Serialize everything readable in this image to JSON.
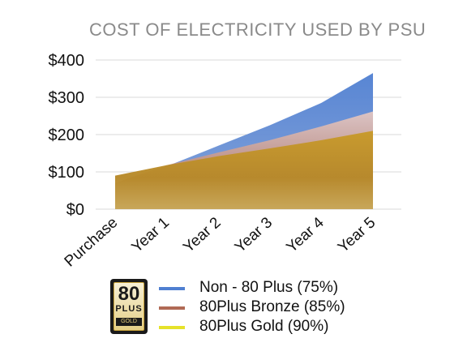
{
  "chart_data": {
    "type": "area",
    "title": "COST OF ELECTRICITY USED BY PSU",
    "categories": [
      "Purchase",
      "Year 1",
      "Year 2",
      "Year 3",
      "Year 4",
      "Year 5"
    ],
    "y_tick_labels": [
      "$0",
      "$100",
      "$200",
      "$300",
      "$400"
    ],
    "ylim": [
      0,
      400
    ],
    "grid": true,
    "legend_position": "bottom",
    "series": [
      {
        "name": "Non - 80 Plus (75%)",
        "color": "#4f7fd1",
        "values": [
          60,
          115,
          170,
          225,
          285,
          365
        ]
      },
      {
        "name": "80Plus Bronze (85%)",
        "color": "#b06a55",
        "values": [
          70,
          118,
          152,
          185,
          222,
          262
        ]
      },
      {
        "name": "80Plus Gold (90%)",
        "color": "#e6e22a",
        "values": [
          90,
          118,
          142,
          163,
          185,
          210
        ]
      }
    ]
  },
  "legend": {
    "badge_number": "80",
    "badge_plus": "PLUS",
    "badge_grade": "GOLD"
  }
}
